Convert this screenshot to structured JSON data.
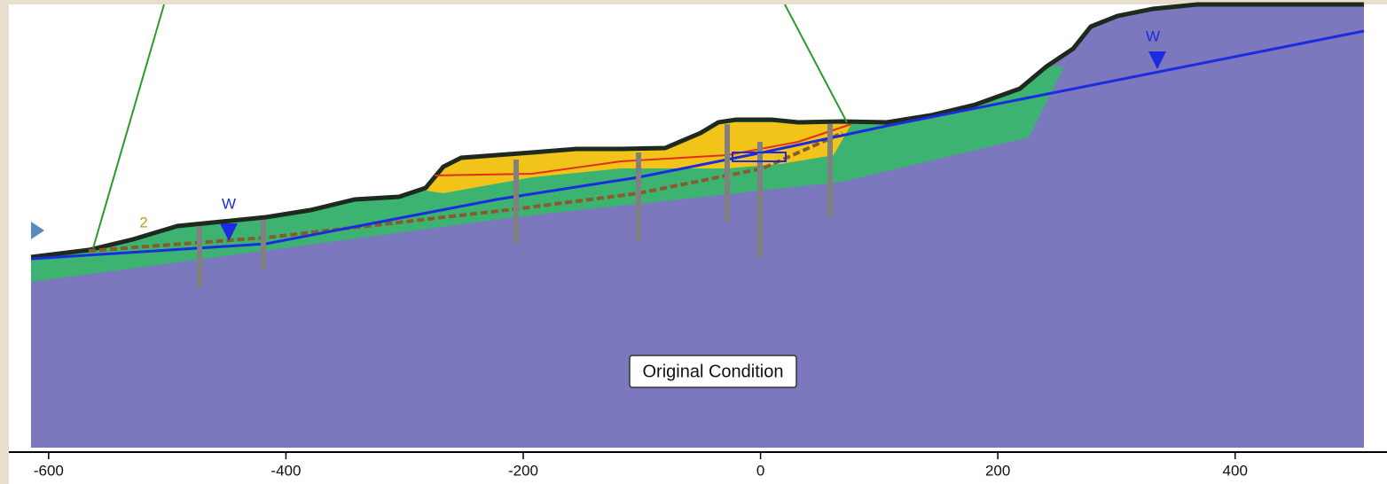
{
  "caption": "Original Condition",
  "annotations": {
    "water_table_left": "W",
    "water_table_right": "W",
    "material_label": "2"
  },
  "x_axis": {
    "xlim": [
      -641,
      528
    ],
    "xticks": [
      -600,
      -400,
      -200,
      0,
      200,
      400
    ]
  }
}
